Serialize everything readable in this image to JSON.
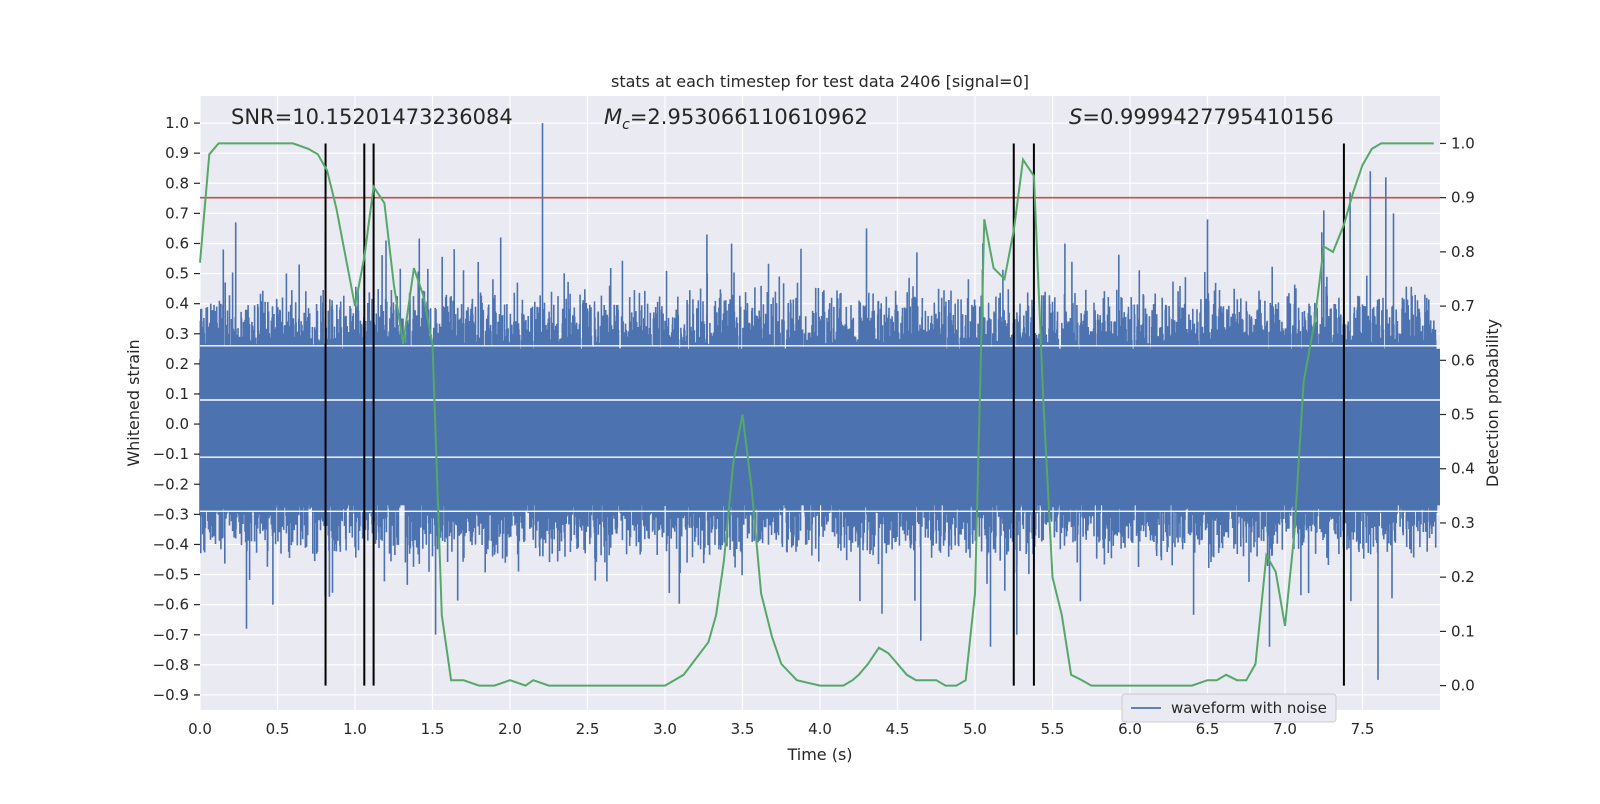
{
  "chart_data": {
    "type": "line",
    "title": "stats at each timestep for test data 2406 [signal=0]",
    "xlabel": "Time (s)",
    "ylabel": "Whitened strain",
    "y2label": "Detection probability",
    "xlim": [
      0.0,
      8.0
    ],
    "ylim": [
      -0.95,
      1.09
    ],
    "y2lim": [
      -0.045,
      1.0875
    ],
    "x_ticks": [
      0.0,
      0.5,
      1.0,
      1.5,
      2.0,
      2.5,
      3.0,
      3.5,
      4.0,
      4.5,
      5.0,
      5.5,
      6.0,
      6.5,
      7.0,
      7.5
    ],
    "x_tick_labels": [
      "0.0",
      "0.5",
      "1.0",
      "1.5",
      "2.0",
      "2.5",
      "3.0",
      "3.5",
      "4.0",
      "4.5",
      "5.0",
      "5.5",
      "6.0",
      "6.5",
      "7.0",
      "7.5"
    ],
    "y_ticks": [
      1.0,
      0.9,
      0.8,
      0.7,
      0.6,
      0.5,
      0.4,
      0.3,
      0.2,
      0.1,
      0.0,
      -0.1,
      -0.2,
      -0.3,
      -0.4,
      -0.5,
      -0.6,
      -0.7,
      -0.8,
      -0.9
    ],
    "y_tick_labels": [
      "1.0",
      "0.9",
      "0.8",
      "0.7",
      "0.6",
      "0.5",
      "0.4",
      "0.3",
      "0.2",
      "0.1",
      "0.0",
      "−0.1",
      "−0.2",
      "−0.3",
      "−0.4",
      "−0.5",
      "−0.6",
      "−0.7",
      "−0.8",
      "−0.9"
    ],
    "y2_ticks": [
      1.0,
      0.9,
      0.8,
      0.7,
      0.6,
      0.5,
      0.4,
      0.3,
      0.2,
      0.1,
      0.0
    ],
    "y2_tick_labels": [
      "1.0",
      "0.9",
      "0.8",
      "0.7",
      "0.6",
      "0.5",
      "0.4",
      "0.3",
      "0.2",
      "0.1",
      "0.0"
    ],
    "grid": true,
    "legend": {
      "placement": "lower-right",
      "entries": [
        {
          "name": "waveform with noise",
          "color": "#4c72b0"
        }
      ]
    },
    "annotations": {
      "snr_text": "SNR=10.15201473236084",
      "mc_text": "=2.953066110610962",
      "mc_symbol": "M",
      "mc_sub": "c",
      "s_symbol": "S",
      "s_text": "=0.9999427795410156"
    },
    "series": [
      {
        "name": "waveform with noise",
        "axis": "left",
        "color": "#4c72b0",
        "description_values": "whitened strain noise, typical amplitude ±0.4",
        "noise_amplitude": 0.28,
        "peaks": [
          {
            "x": 0.15,
            "y": 0.58
          },
          {
            "x": 0.23,
            "y": 0.67
          },
          {
            "x": 0.3,
            "y": -0.68
          },
          {
            "x": 0.47,
            "y": -0.6
          },
          {
            "x": 0.64,
            "y": 0.53
          },
          {
            "x": 0.81,
            "y": 0.64
          },
          {
            "x": 1.2,
            "y": 0.61
          },
          {
            "x": 1.52,
            "y": -0.7
          },
          {
            "x": 1.94,
            "y": 0.62
          },
          {
            "x": 2.21,
            "y": 1.0
          },
          {
            "x": 2.55,
            "y": -0.52
          },
          {
            "x": 3.27,
            "y": 0.63
          },
          {
            "x": 3.43,
            "y": 0.6
          },
          {
            "x": 4.3,
            "y": 0.65
          },
          {
            "x": 4.4,
            "y": -0.63
          },
          {
            "x": 4.65,
            "y": -0.72
          },
          {
            "x": 5.05,
            "y": 0.6
          },
          {
            "x": 5.1,
            "y": -0.74
          },
          {
            "x": 5.27,
            "y": -0.7
          },
          {
            "x": 5.58,
            "y": 0.6
          },
          {
            "x": 6.5,
            "y": 0.68
          },
          {
            "x": 6.9,
            "y": -0.74
          },
          {
            "x": 7.25,
            "y": 0.71
          },
          {
            "x": 7.42,
            "y": 0.77
          },
          {
            "x": 7.55,
            "y": 0.84
          },
          {
            "x": 7.6,
            "y": -0.85
          },
          {
            "x": 7.65,
            "y": 0.82
          },
          {
            "x": 7.7,
            "y": 0.7
          }
        ]
      },
      {
        "name": "detection probability",
        "axis": "right",
        "color": "#55a868",
        "x": [
          0.0,
          0.06,
          0.12,
          0.2,
          0.3,
          0.4,
          0.5,
          0.6,
          0.7,
          0.76,
          0.82,
          0.88,
          0.94,
          1.0,
          1.06,
          1.12,
          1.19,
          1.25,
          1.31,
          1.38,
          1.44,
          1.5,
          1.56,
          1.62,
          1.7,
          1.8,
          1.9,
          2.0,
          2.1,
          2.15,
          2.25,
          2.35,
          2.5,
          2.7,
          2.9,
          3.0,
          3.06,
          3.12,
          3.2,
          3.28,
          3.33,
          3.38,
          3.44,
          3.5,
          3.56,
          3.62,
          3.69,
          3.75,
          3.85,
          4.0,
          4.15,
          4.21,
          4.25,
          4.31,
          4.38,
          4.44,
          4.5,
          4.56,
          4.62,
          4.69,
          4.75,
          4.81,
          4.88,
          4.94,
          5.0,
          5.06,
          5.12,
          5.19,
          5.25,
          5.31,
          5.38,
          5.44,
          5.5,
          5.56,
          5.62,
          5.69,
          5.75,
          5.85,
          6.0,
          6.2,
          6.4,
          6.5,
          6.56,
          6.62,
          6.69,
          6.75,
          6.81,
          6.88,
          6.94,
          7.0,
          7.06,
          7.12,
          7.19,
          7.25,
          7.31,
          7.38,
          7.44,
          7.5,
          7.56,
          7.62,
          7.7,
          7.8,
          7.9,
          7.96
        ],
        "values": [
          0.78,
          0.98,
          1.0,
          1.0,
          1.0,
          1.0,
          1.0,
          1.0,
          0.99,
          0.98,
          0.95,
          0.88,
          0.79,
          0.7,
          0.79,
          0.92,
          0.89,
          0.74,
          0.63,
          0.77,
          0.72,
          0.63,
          0.13,
          0.01,
          0.01,
          0.0,
          0.0,
          0.01,
          0.0,
          0.01,
          0.0,
          0.0,
          0.0,
          0.0,
          0.0,
          0.0,
          0.01,
          0.02,
          0.05,
          0.08,
          0.13,
          0.23,
          0.41,
          0.5,
          0.36,
          0.17,
          0.09,
          0.04,
          0.01,
          0.0,
          0.0,
          0.01,
          0.02,
          0.04,
          0.07,
          0.06,
          0.04,
          0.02,
          0.01,
          0.01,
          0.01,
          0.0,
          0.0,
          0.01,
          0.17,
          0.86,
          0.77,
          0.75,
          0.84,
          0.97,
          0.94,
          0.53,
          0.2,
          0.13,
          0.02,
          0.01,
          0.0,
          0.0,
          0.0,
          0.0,
          0.0,
          0.01,
          0.01,
          0.02,
          0.01,
          0.01,
          0.04,
          0.24,
          0.21,
          0.11,
          0.28,
          0.56,
          0.67,
          0.81,
          0.8,
          0.85,
          0.91,
          0.96,
          0.99,
          1.0,
          1.0,
          1.0,
          1.0,
          1.0
        ]
      }
    ],
    "threshold_line": {
      "axis": "right",
      "value": 0.9,
      "color": "#c44e52"
    },
    "vertical_markers": {
      "x": [
        0.81,
        1.06,
        1.12,
        5.25,
        5.38,
        7.38
      ],
      "y2_range": [
        0.0,
        1.0
      ],
      "color": "#000000"
    },
    "white_lines": {
      "axis": "left",
      "values": [
        0.26,
        0.08,
        -0.11,
        -0.29
      ]
    }
  }
}
